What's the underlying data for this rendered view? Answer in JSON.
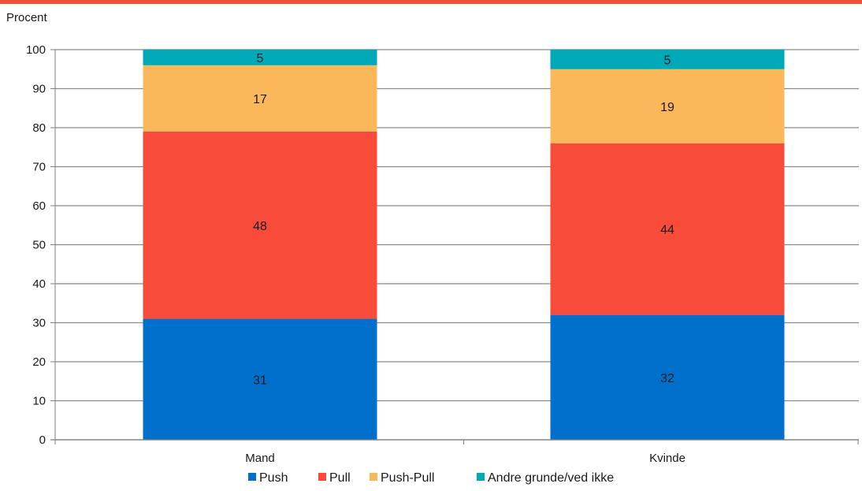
{
  "chart_data": {
    "type": "bar",
    "stacked": true,
    "ylabel": "Procent",
    "xlabel": "",
    "title": "",
    "ylim": [
      0,
      100
    ],
    "yticks": [
      0,
      10,
      20,
      30,
      40,
      50,
      60,
      70,
      80,
      90,
      100
    ],
    "grid": true,
    "legend_position": "bottom",
    "categories": [
      "Mand",
      "Kvinde"
    ],
    "series": [
      {
        "name": "Push",
        "color": "#0070cc",
        "values": [
          31,
          32
        ]
      },
      {
        "name": "Pull",
        "color": "#f84b3a",
        "values": [
          48,
          44
        ]
      },
      {
        "name": "Push-Pull",
        "color": "#fbb85b",
        "values": [
          17,
          19
        ]
      },
      {
        "name": "Andre grunde/ved ikke",
        "color": "#00a9b8",
        "values": [
          5,
          5
        ]
      }
    ]
  },
  "colors": {
    "top_rule": "#f04e37",
    "grid": "#8a8a8a",
    "axis": "#808080"
  }
}
